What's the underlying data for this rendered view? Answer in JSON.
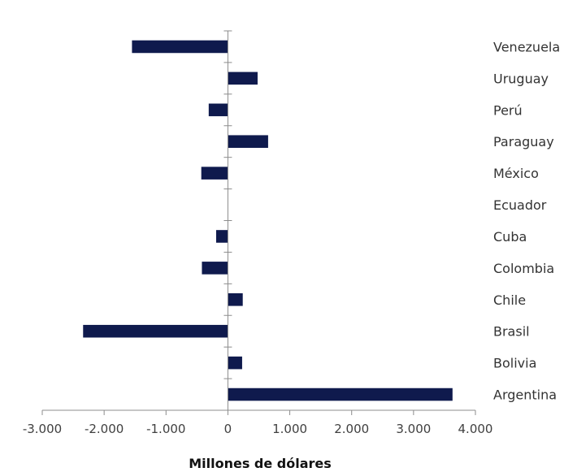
{
  "chart_data": {
    "type": "bar",
    "orientation": "horizontal",
    "categories": [
      "Venezuela",
      "Uruguay",
      "Perú",
      "Paraguay",
      "México",
      "Ecuador",
      "Cuba",
      "Colombia",
      "Chile",
      "Brasil",
      "Bolivia",
      "Argentina"
    ],
    "values": [
      -1550,
      480,
      -310,
      650,
      -430,
      0,
      -190,
      -420,
      240,
      -2340,
      230,
      3630
    ],
    "xlabel": "Millones de dólares",
    "xlim": [
      -3000,
      4000
    ],
    "xticks": [
      -3000,
      -2000,
      -1000,
      0,
      1000,
      2000,
      3000,
      4000
    ],
    "xtick_labels": [
      "-3.000",
      "-2.000",
      "-1.000",
      "0",
      "1.000",
      "2.000",
      "3.000",
      "4.000"
    ],
    "bar_color": "#0f1a4d",
    "grid": false,
    "legend": "none"
  }
}
